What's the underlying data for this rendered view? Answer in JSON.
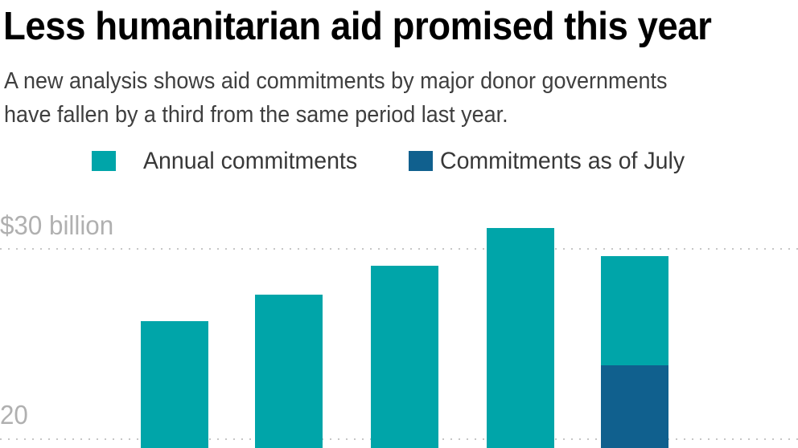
{
  "header": {
    "title": "Less humanitarian aid promised this year",
    "subtitle_line1": "A new analysis shows aid commitments by major donor governments",
    "subtitle_line2": "have fallen by a third from the same period last year."
  },
  "legend": {
    "items": [
      {
        "label": "Annual commitments",
        "color": "#00a5a9"
      },
      {
        "label": "Commitments as of July",
        "color": "#10608e"
      }
    ]
  },
  "colors": {
    "annual_teal": "#00a5a9",
    "july_blue": "#10608e",
    "gridline_gray": "#c6c6c6",
    "axis_label_gray": "#b0b0b0"
  },
  "chart_data": {
    "type": "bar",
    "title": "Less humanitarian aid promised this year",
    "subtitle": "A new analysis shows aid commitments by major donor governments have fallen by a third from the same period last year.",
    "unit": "billion USD",
    "categories": [
      "",
      "",
      "",
      "",
      ""
    ],
    "series": [
      {
        "name": "Annual commitments",
        "color": "#00a5a9",
        "values": [
          26.2,
          27.6,
          29.1,
          31.1,
          29.6
        ]
      },
      {
        "name": "Commitments as of July",
        "color": "#10608e",
        "values": [
          null,
          null,
          null,
          null,
          23.9
        ]
      }
    ],
    "y_axis": {
      "top_label": "$30 billion",
      "bottom_label": "20",
      "gridline_values": [
        30,
        20
      ]
    },
    "grid": "dotted horizontal",
    "legend_position": "top",
    "bars_cropped_at_bottom": true
  }
}
